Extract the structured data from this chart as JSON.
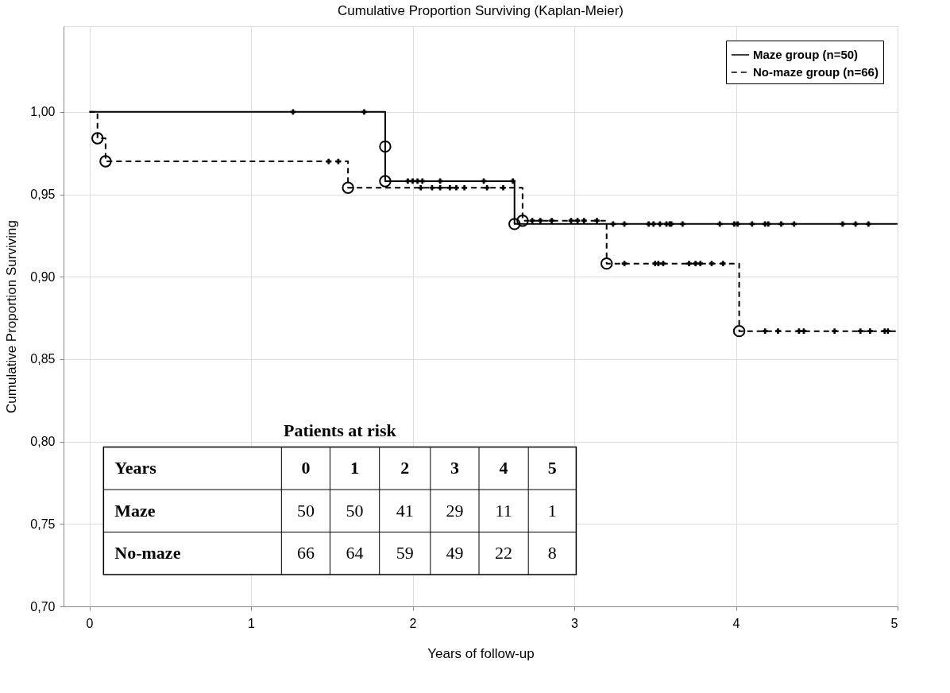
{
  "chart_data": {
    "type": "step",
    "title": "Cumulative Proportion Surviving (Kaplan-Meier)",
    "xlabel": "Years of follow-up",
    "ylabel": "Cumulative Proportion Surviving",
    "xlim": [
      -0.16,
      5
    ],
    "xticks": [
      0,
      1,
      2,
      3,
      4,
      5
    ],
    "ylim": [
      0.7,
      1.052
    ],
    "yticks": [
      {
        "value": 0.7,
        "label": "0,70"
      },
      {
        "value": 0.75,
        "label": "0,75"
      },
      {
        "value": 0.8,
        "label": "0,80"
      },
      {
        "value": 0.85,
        "label": "0,85"
      },
      {
        "value": 0.9,
        "label": "0,90"
      },
      {
        "value": 0.95,
        "label": "0,95"
      },
      {
        "value": 1.0,
        "label": "1,00"
      }
    ],
    "grid": true,
    "legend": "top right",
    "series": [
      {
        "name": "Maze group (n=50)",
        "color": "#000000",
        "line_style": "solid",
        "x": [
          0,
          1.83,
          1.83,
          2.63,
          5
        ],
        "values": [
          1.0,
          0.979,
          0.958,
          0.932,
          0.932
        ]
      },
      {
        "name": "No-maze group (n=66)",
        "color": "#000000",
        "line_style": "dashed",
        "x": [
          0,
          0.05,
          0.1,
          1.6,
          2.68,
          3.2,
          4.02,
          5
        ],
        "values": [
          1.0,
          0.984,
          0.97,
          0.954,
          0.934,
          0.908,
          0.867,
          0.867
        ]
      },
      {
        "type": "scatter",
        "marker": "circle",
        "color": "#000000",
        "x": [
          1.83,
          1.83,
          2.63
        ],
        "values": [
          0.979,
          0.958,
          0.932
        ]
      },
      {
        "type": "scatter",
        "marker": "circle",
        "color": "#000000",
        "x": [
          0.05,
          0.1,
          1.6,
          2.68,
          3.2,
          4.02
        ],
        "values": [
          0.984,
          0.97,
          0.954,
          0.934,
          0.908,
          0.867
        ]
      },
      {
        "type": "scatter",
        "marker": "cross",
        "color": "#000000",
        "x": [
          1.26,
          1.7,
          1.97,
          2.0,
          2.03,
          2.06,
          2.17,
          2.44,
          2.62,
          3.24,
          3.31,
          3.46,
          3.49,
          3.53,
          3.57,
          3.59,
          3.6,
          3.67,
          3.9,
          3.99,
          4.01,
          4.1,
          4.18,
          4.2,
          4.28,
          4.36,
          4.66,
          4.74,
          4.82
        ],
        "values": [
          1.0,
          1.0,
          0.958,
          0.958,
          0.958,
          0.958,
          0.958,
          0.958,
          0.958,
          0.932,
          0.932,
          0.932,
          0.932,
          0.932,
          0.932,
          0.932,
          0.932,
          0.932,
          0.932,
          0.932,
          0.932,
          0.932,
          0.932,
          0.932,
          0.932,
          0.932,
          0.932,
          0.932,
          0.932
        ]
      },
      {
        "type": "scatter",
        "marker": "cross",
        "color": "#000000",
        "x": [
          1.48,
          1.54,
          2.05,
          2.12,
          2.17,
          2.23,
          2.27,
          2.32,
          2.46,
          2.56,
          2.74,
          2.79,
          2.86,
          2.98,
          3.02,
          3.06,
          3.14,
          3.31,
          3.5,
          3.52,
          3.55,
          3.71,
          3.75,
          3.78,
          3.85,
          3.92,
          4.18,
          4.26,
          4.39,
          4.42,
          4.61,
          4.77,
          4.83,
          4.92,
          4.94
        ],
        "values": [
          0.97,
          0.97,
          0.954,
          0.954,
          0.954,
          0.954,
          0.954,
          0.954,
          0.954,
          0.954,
          0.934,
          0.934,
          0.934,
          0.934,
          0.934,
          0.934,
          0.934,
          0.908,
          0.908,
          0.908,
          0.908,
          0.908,
          0.908,
          0.908,
          0.908,
          0.908,
          0.867,
          0.867,
          0.867,
          0.867,
          0.867,
          0.867,
          0.867,
          0.867,
          0.867
        ]
      }
    ],
    "annotations": [
      "Patients at risk",
      "Years",
      "0",
      "1",
      "2",
      "3",
      "4",
      "5",
      "Maze",
      "50",
      "50",
      "41",
      "29",
      "11",
      "1",
      "No-maze",
      "66",
      "64",
      "59",
      "49",
      "22",
      "8"
    ]
  }
}
